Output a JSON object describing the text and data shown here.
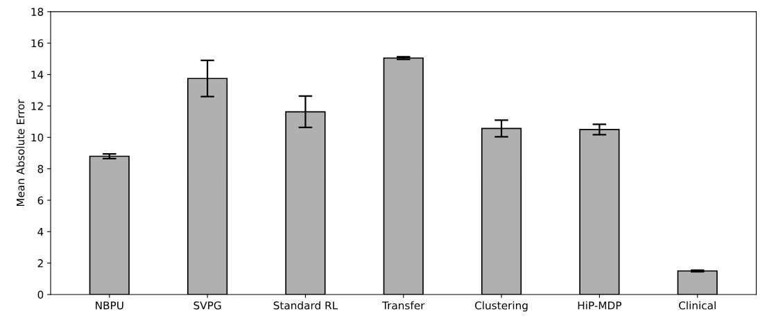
{
  "chart_data": {
    "type": "bar",
    "ylabel": "Mean Absolute Error",
    "categories": [
      "NBPU",
      "SVPG",
      "Standard RL",
      "Transfer",
      "Clustering",
      "HiP-MDP",
      "Clinical"
    ],
    "values": [
      8.8,
      13.75,
      11.63,
      15.05,
      10.57,
      10.5,
      1.5
    ],
    "errors": [
      0.15,
      1.15,
      1.0,
      0.08,
      0.53,
      0.33,
      0.05
    ],
    "color": "#b0b0b0",
    "ylim": [
      0,
      18
    ],
    "yticks": [
      0,
      2,
      4,
      6,
      8,
      10,
      12,
      14,
      16,
      18
    ],
    "grid": false
  }
}
